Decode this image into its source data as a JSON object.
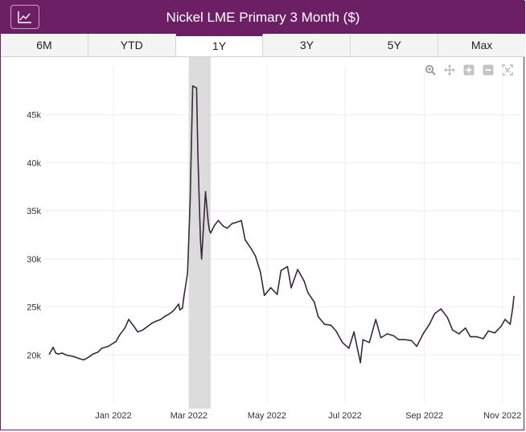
{
  "header": {
    "title": "Nickel LME Primary 3 Month ($)",
    "chart_icon": "line-chart-icon"
  },
  "tabs": [
    {
      "label": "6M",
      "active": false
    },
    {
      "label": "YTD",
      "active": false
    },
    {
      "label": "1Y",
      "active": true
    },
    {
      "label": "3Y",
      "active": false
    },
    {
      "label": "5Y",
      "active": false
    },
    {
      "label": "Max",
      "active": false
    }
  ],
  "toolbar": [
    "zoom-icon",
    "pan-icon",
    "zoom-in-icon",
    "zoom-out-icon",
    "autoscale-icon"
  ],
  "colors": {
    "header": "#6d1f65",
    "line": "#3a2a3a",
    "highlight": "#dcdcdc",
    "grid": "#eeeeee"
  },
  "chart_data": {
    "type": "line",
    "title": "Nickel LME Primary 3 Month ($)",
    "xlabel": "",
    "ylabel": "",
    "x_ticks": [
      {
        "date": "2022-01-01",
        "label": "Jan 2022"
      },
      {
        "date": "2022-03-01",
        "label": "Mar 2022"
      },
      {
        "date": "2022-05-01",
        "label": "May 2022"
      },
      {
        "date": "2022-07-01",
        "label": "Jul 2022"
      },
      {
        "date": "2022-09-01",
        "label": "Sep 2022"
      },
      {
        "date": "2022-11-01",
        "label": "Nov 2022"
      }
    ],
    "y_ticks": [
      {
        "value": 20000,
        "label": "20k"
      },
      {
        "value": 25000,
        "label": "25k"
      },
      {
        "value": 30000,
        "label": "30k"
      },
      {
        "value": 35000,
        "label": "35k"
      },
      {
        "value": 40000,
        "label": "40k"
      },
      {
        "value": 45000,
        "label": "45k"
      }
    ],
    "xlim": [
      "2021-11-08",
      "2022-11-15"
    ],
    "ylim": [
      15000,
      50000
    ],
    "grid": true,
    "highlight_range": [
      "2022-03-01",
      "2022-03-18"
    ],
    "series": [
      {
        "x": [
          "2021-11-12",
          "2021-11-15",
          "2021-11-17",
          "2021-11-19",
          "2021-11-22",
          "2021-11-25",
          "2021-11-29",
          "2021-12-02",
          "2021-12-06",
          "2021-12-09",
          "2021-12-13",
          "2021-12-16",
          "2021-12-20",
          "2021-12-23",
          "2021-12-28",
          "2022-01-03",
          "2022-01-06",
          "2022-01-10",
          "2022-01-13",
          "2022-01-17",
          "2022-01-20",
          "2022-01-24",
          "2022-01-27",
          "2022-01-31",
          "2022-02-03",
          "2022-02-07",
          "2022-02-10",
          "2022-02-14",
          "2022-02-17",
          "2022-02-21",
          "2022-02-22",
          "2022-02-24",
          "2022-02-25",
          "2022-02-28",
          "2022-03-02",
          "2022-03-03",
          "2022-03-04",
          "2022-03-07",
          "2022-03-08",
          "2022-03-10",
          "2022-03-11",
          "2022-03-14",
          "2022-03-16",
          "2022-03-17",
          "2022-03-18",
          "2022-03-21",
          "2022-03-24",
          "2022-03-28",
          "2022-03-31",
          "2022-04-04",
          "2022-04-07",
          "2022-04-11",
          "2022-04-14",
          "2022-04-19",
          "2022-04-22",
          "2022-04-26",
          "2022-04-29",
          "2022-05-04",
          "2022-05-09",
          "2022-05-12",
          "2022-05-17",
          "2022-05-20",
          "2022-05-25",
          "2022-05-30",
          "2022-06-02",
          "2022-06-07",
          "2022-06-10",
          "2022-06-15",
          "2022-06-20",
          "2022-06-24",
          "2022-06-29",
          "2022-07-04",
          "2022-07-08",
          "2022-07-13",
          "2022-07-15",
          "2022-07-20",
          "2022-07-25",
          "2022-07-29",
          "2022-08-03",
          "2022-08-08",
          "2022-08-12",
          "2022-08-17",
          "2022-08-22",
          "2022-08-26",
          "2022-08-31",
          "2022-09-05",
          "2022-09-09",
          "2022-09-14",
          "2022-09-19",
          "2022-09-23",
          "2022-09-28",
          "2022-10-03",
          "2022-10-07",
          "2022-10-12",
          "2022-10-17",
          "2022-10-21",
          "2022-10-26",
          "2022-10-31",
          "2022-11-03",
          "2022-11-07",
          "2022-11-09",
          "2022-11-10"
        ],
        "y": [
          20100,
          20800,
          20200,
          20100,
          20200,
          20000,
          19900,
          19800,
          19600,
          19500,
          19800,
          20100,
          20300,
          20700,
          20900,
          21400,
          22100,
          22800,
          23700,
          23000,
          22400,
          22600,
          22900,
          23300,
          23500,
          23700,
          24000,
          24300,
          24600,
          25300,
          24700,
          24900,
          26000,
          28500,
          36000,
          42000,
          48000,
          47800,
          41000,
          32000,
          30000,
          37000,
          34000,
          33000,
          32700,
          33500,
          34000,
          33400,
          33200,
          33700,
          33800,
          34000,
          32000,
          31000,
          30300,
          28600,
          26200,
          27000,
          26300,
          28800,
          29200,
          27000,
          28900,
          27700,
          26500,
          25500,
          24000,
          23200,
          23100,
          22500,
          21300,
          20700,
          22400,
          19200,
          21600,
          21300,
          23700,
          21800,
          22200,
          22000,
          21600,
          21600,
          21500,
          20900,
          22200,
          23200,
          24300,
          24800,
          23900,
          22600,
          22200,
          22800,
          21900,
          21900,
          21700,
          22500,
          22300,
          23000,
          23700,
          23200,
          24900,
          26100
        ]
      }
    ]
  }
}
